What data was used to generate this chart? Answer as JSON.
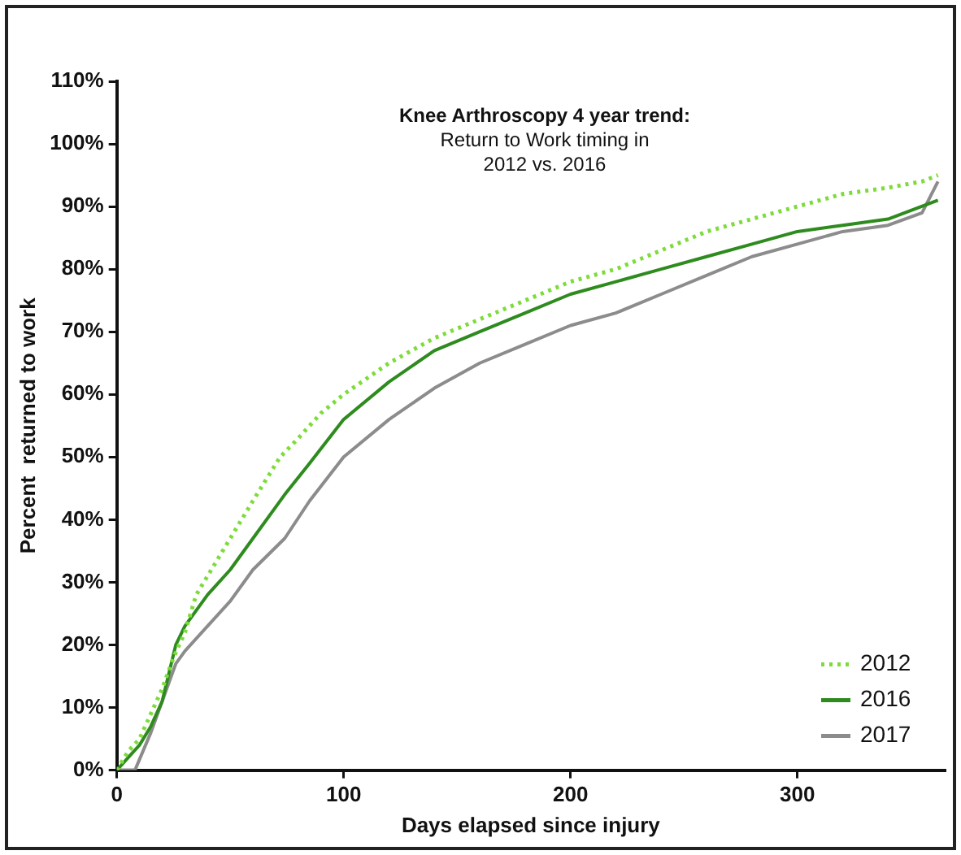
{
  "chart_data": {
    "type": "line",
    "title": "Knee Arthroscopy 4 year trend:",
    "subtitle": "Return to Work timing in 2012 vs. 2016",
    "xlabel": "Days elapsed since injury",
    "ylabel": "Percent  returned to work",
    "xlim": [
      0,
      365
    ],
    "xticks": [
      0,
      100,
      200,
      300
    ],
    "ylim": [
      0,
      110
    ],
    "yticks": [
      {
        "value": 0,
        "label": "0%"
      },
      {
        "value": 10,
        "label": "10%"
      },
      {
        "value": 20,
        "label": "20%"
      },
      {
        "value": 30,
        "label": "30%"
      },
      {
        "value": 40,
        "label": "40%"
      },
      {
        "value": 50,
        "label": "50%"
      },
      {
        "value": 60,
        "label": "60%"
      },
      {
        "value": 70,
        "label": "70%"
      },
      {
        "value": 80,
        "label": "80%"
      },
      {
        "value": 90,
        "label": "90%"
      },
      {
        "value": 100,
        "label": "100%"
      },
      {
        "value": 110,
        "label": "110%"
      }
    ],
    "grid": false,
    "legend": "bottom right",
    "marker": "none",
    "series": [
      {
        "name": "2012",
        "color": "#7ddc3a",
        "line_style": "dotted",
        "x": [
          0,
          5,
          10,
          15,
          20,
          25,
          30,
          35,
          40,
          50,
          60,
          72,
          80,
          90,
          100,
          120,
          140,
          160,
          180,
          200,
          220,
          240,
          260,
          280,
          300,
          320,
          340,
          355,
          362
        ],
        "values": [
          0,
          3,
          5,
          9,
          13,
          18,
          22,
          28,
          31,
          37,
          43,
          50,
          53,
          57,
          60,
          65,
          69,
          72,
          75,
          78,
          80,
          83,
          86,
          88,
          90,
          92,
          93,
          94,
          95
        ]
      },
      {
        "name": "2016",
        "color": "#2e8b1e",
        "line_style": "solid",
        "x": [
          0,
          5,
          10,
          15,
          20,
          26,
          30,
          40,
          50,
          60,
          74,
          85,
          100,
          120,
          140,
          160,
          180,
          200,
          220,
          240,
          260,
          280,
          300,
          320,
          340,
          362
        ],
        "values": [
          0,
          2,
          4,
          7,
          11,
          20,
          23,
          28,
          32,
          37,
          44,
          49,
          56,
          62,
          67,
          70,
          73,
          76,
          78,
          80,
          82,
          84,
          86,
          87,
          88,
          91
        ]
      },
      {
        "name": "2017",
        "color": "#8c8c8c",
        "line_style": "solid",
        "x": [
          0,
          8,
          15,
          20,
          26,
          30,
          40,
          50,
          60,
          74,
          85,
          100,
          120,
          140,
          160,
          180,
          200,
          220,
          240,
          260,
          280,
          300,
          320,
          340,
          355,
          362
        ],
        "values": [
          0,
          0,
          6,
          11,
          17,
          19,
          23,
          27,
          32,
          37,
          43,
          50,
          56,
          61,
          65,
          68,
          71,
          73,
          76,
          79,
          82,
          84,
          86,
          87,
          89,
          94
        ]
      }
    ]
  }
}
